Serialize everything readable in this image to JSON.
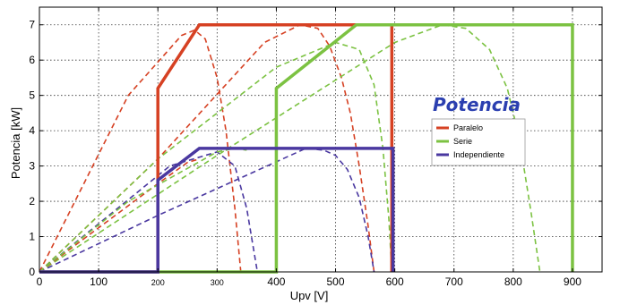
{
  "chart_data": {
    "type": "line",
    "title": "Potencia",
    "xlabel": "Upv [V]",
    "ylabel": "Potencia [kW]",
    "xlim": [
      0,
      950
    ],
    "ylim": [
      0,
      7.5
    ],
    "xticks": [
      {
        "value": 0,
        "label": "0"
      },
      {
        "value": 100,
        "label": "100"
      },
      {
        "value": 200,
        "label": "200"
      },
      {
        "value": 300,
        "label": "300"
      },
      {
        "value": 400,
        "label": "400"
      },
      {
        "value": 500,
        "label": "500"
      },
      {
        "value": 600,
        "label": "600"
      },
      {
        "value": 700,
        "label": "700"
      },
      {
        "value": 800,
        "label": "800"
      },
      {
        "value": 900,
        "label": "900"
      }
    ],
    "yticks": [
      0,
      1,
      2,
      3,
      4,
      5,
      6,
      7
    ],
    "grid": true,
    "legend_position": "right",
    "colors": {
      "Paralelo": "#d64123",
      "Serie": "#7cc242",
      "Independiente": "#4a38a0"
    },
    "series": [
      {
        "name": "Paralelo",
        "style": "solid",
        "x": [
          0,
          200,
          200,
          270,
          595,
          595
        ],
        "y": [
          0,
          0,
          5.2,
          7.0,
          7.0,
          0
        ]
      },
      {
        "name": "Serie",
        "style": "solid",
        "x": [
          0,
          400,
          400,
          535,
          900,
          900
        ],
        "y": [
          0,
          0,
          5.2,
          7.0,
          7.0,
          0
        ]
      },
      {
        "name": "Independiente",
        "style": "solid",
        "x": [
          0,
          200,
          200,
          270,
          597,
          597
        ],
        "y": [
          0,
          0,
          2.6,
          3.5,
          3.5,
          0
        ]
      }
    ],
    "dashed_curves": [
      {
        "series": "Paralelo",
        "x": [
          0,
          150,
          240,
          262,
          280,
          300,
          315,
          330,
          340
        ],
        "y": [
          0,
          5.0,
          6.7,
          6.85,
          6.6,
          5.5,
          4.0,
          1.8,
          0
        ]
      },
      {
        "series": "Paralelo",
        "x": [
          0,
          200,
          380,
          440,
          470,
          490,
          510,
          525,
          540,
          555,
          565
        ],
        "y": [
          0,
          3.2,
          6.5,
          7.0,
          6.9,
          6.4,
          5.5,
          4.5,
          3.0,
          1.3,
          0
        ]
      },
      {
        "series": "Serie",
        "x": [
          0,
          200,
          400,
          500,
          540,
          565,
          580,
          590,
          595
        ],
        "y": [
          0,
          3.2,
          5.8,
          6.5,
          6.3,
          5.3,
          3.5,
          1.5,
          0
        ]
      },
      {
        "series": "Serie",
        "x": [
          0,
          300,
          600,
          680,
          720,
          760,
          790,
          810,
          830,
          845
        ],
        "y": [
          0,
          3.3,
          6.5,
          7.0,
          6.9,
          6.3,
          5.2,
          3.8,
          1.7,
          0
        ]
      },
      {
        "series": "Independiente",
        "x": [
          0,
          220,
          300,
          330,
          350,
          360,
          365,
          368
        ],
        "y": [
          0,
          3.0,
          3.4,
          3.0,
          1.8,
          0.8,
          0.3,
          0
        ]
      },
      {
        "series": "Independiente",
        "x": [
          0,
          200,
          450,
          480,
          500,
          520,
          540,
          555,
          565
        ],
        "y": [
          0,
          1.6,
          3.5,
          3.45,
          3.3,
          2.9,
          2.1,
          1.0,
          0
        ]
      },
      {
        "series": "Paralelo",
        "x": [
          0,
          120,
          200,
          250,
          270
        ],
        "y": [
          0,
          1.5,
          2.5,
          3.1,
          3.2
        ]
      },
      {
        "series": "Serie",
        "x": [
          0,
          150,
          300,
          330,
          350
        ],
        "y": [
          0,
          2.0,
          3.4,
          3.5,
          3.45
        ]
      }
    ]
  }
}
